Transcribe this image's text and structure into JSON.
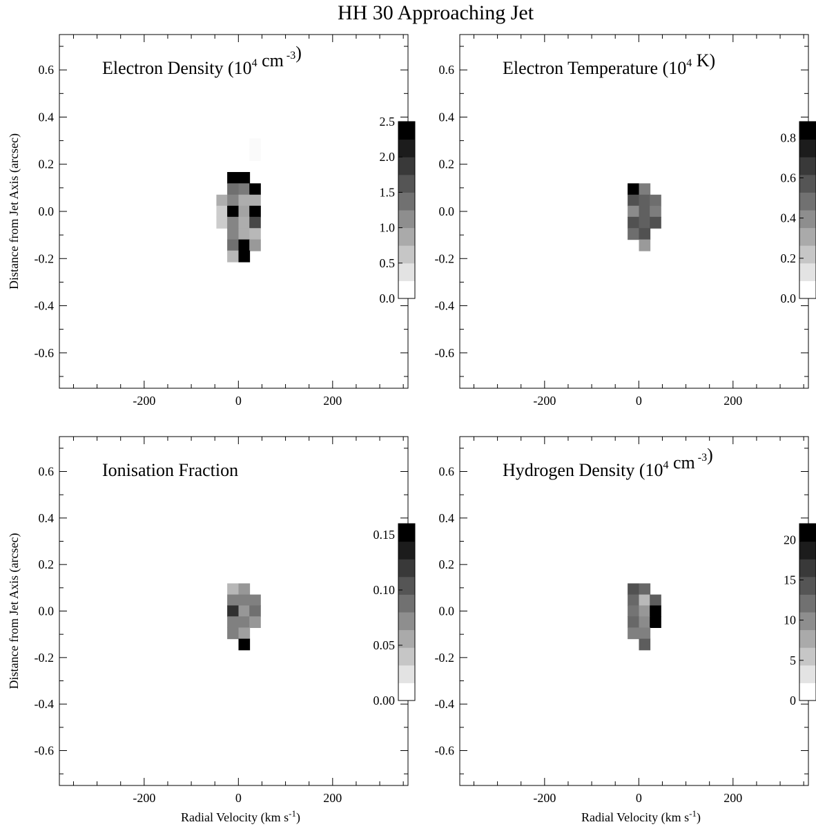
{
  "figure": {
    "title": "HH 30 Approaching Jet",
    "xlabel_prefix": "Radial Velocity (km s",
    "xlabel_sup": "-1",
    "xlabel_suffix": ")",
    "ylabel": "Distance from Jet Axis (arcsec)",
    "x_ticks": [
      "-200",
      "0",
      "200"
    ],
    "y_ticks": [
      "-0.6",
      "-0.4",
      "-0.2",
      "0.0",
      "0.2",
      "0.4",
      "0.6"
    ]
  },
  "chart_data": [
    {
      "type": "heatmap",
      "title_prefix": "Electron Density (10",
      "title_sup1": "4",
      "title_mid": " cm",
      "title_sup2": " -3",
      "title_suffix": ")",
      "xlim": [
        -380,
        360
      ],
      "ylim": [
        -0.75,
        0.75
      ],
      "cell_width": 23.5,
      "cell_height": 0.048,
      "colorbar": {
        "range": [
          0,
          2.5
        ],
        "ticks": [
          "0.0",
          "0.5",
          "1.0",
          "1.5",
          "2.0",
          "2.5"
        ],
        "tick_values": [
          0,
          0.5,
          1.0,
          1.5,
          2.0,
          2.5
        ]
      },
      "cells": [
        {
          "x": 35,
          "y": 0.285,
          "v": 0.05
        },
        {
          "x": 35,
          "y": 0.24,
          "v": 0.05
        },
        {
          "x": -12,
          "y": 0.143,
          "v": 2.5
        },
        {
          "x": 12,
          "y": 0.143,
          "v": 2.5
        },
        {
          "x": -12,
          "y": 0.095,
          "v": 1.4
        },
        {
          "x": 12,
          "y": 0.095,
          "v": 1.3
        },
        {
          "x": 35,
          "y": 0.095,
          "v": 2.5
        },
        {
          "x": -35,
          "y": 0.047,
          "v": 0.8
        },
        {
          "x": -12,
          "y": 0.047,
          "v": 1.2
        },
        {
          "x": 12,
          "y": 0.047,
          "v": 0.8
        },
        {
          "x": 35,
          "y": 0.047,
          "v": 0.8
        },
        {
          "x": -35,
          "y": 0.0,
          "v": 0.5
        },
        {
          "x": -12,
          "y": 0.0,
          "v": 2.5
        },
        {
          "x": 12,
          "y": 0.0,
          "v": 0.9
        },
        {
          "x": 35,
          "y": 0.0,
          "v": 2.5
        },
        {
          "x": -35,
          "y": -0.047,
          "v": 0.5
        },
        {
          "x": -12,
          "y": -0.047,
          "v": 1.2
        },
        {
          "x": 12,
          "y": -0.047,
          "v": 0.8
        },
        {
          "x": 35,
          "y": -0.047,
          "v": 1.8
        },
        {
          "x": -12,
          "y": -0.095,
          "v": 1.2
        },
        {
          "x": 12,
          "y": -0.095,
          "v": 0.8
        },
        {
          "x": 35,
          "y": -0.095,
          "v": 0.7
        },
        {
          "x": -12,
          "y": -0.143,
          "v": 1.4
        },
        {
          "x": 12,
          "y": -0.143,
          "v": 2.5
        },
        {
          "x": 35,
          "y": -0.143,
          "v": 1.0
        },
        {
          "x": -12,
          "y": -0.19,
          "v": 0.7
        },
        {
          "x": 12,
          "y": -0.19,
          "v": 2.5
        }
      ]
    },
    {
      "type": "heatmap",
      "title_prefix": "Electron Temperature (10",
      "title_sup1": "4",
      "title_mid": " K)",
      "title_sup2": "",
      "title_suffix": "",
      "xlim": [
        -380,
        360
      ],
      "ylim": [
        -0.75,
        0.75
      ],
      "cell_width": 23.5,
      "cell_height": 0.048,
      "colorbar": {
        "range": [
          0,
          0.88
        ],
        "ticks": [
          "0.0",
          "0.2",
          "0.4",
          "0.6",
          "0.8"
        ],
        "tick_values": [
          0,
          0.2,
          0.4,
          0.6,
          0.8
        ]
      },
      "cells": [
        {
          "x": -12,
          "y": 0.095,
          "v": 0.88
        },
        {
          "x": 12,
          "y": 0.095,
          "v": 0.45
        },
        {
          "x": -12,
          "y": 0.047,
          "v": 0.6
        },
        {
          "x": 12,
          "y": 0.047,
          "v": 0.55
        },
        {
          "x": 35,
          "y": 0.047,
          "v": 0.5
        },
        {
          "x": -12,
          "y": 0.0,
          "v": 0.4
        },
        {
          "x": 12,
          "y": 0.0,
          "v": 0.55
        },
        {
          "x": 35,
          "y": 0.0,
          "v": 0.45
        },
        {
          "x": -12,
          "y": -0.047,
          "v": 0.6
        },
        {
          "x": 12,
          "y": -0.047,
          "v": 0.55
        },
        {
          "x": 35,
          "y": -0.047,
          "v": 0.6
        },
        {
          "x": -12,
          "y": -0.095,
          "v": 0.5
        },
        {
          "x": 12,
          "y": -0.095,
          "v": 0.6
        },
        {
          "x": 12,
          "y": -0.143,
          "v": 0.35
        }
      ]
    },
    {
      "type": "heatmap",
      "title_prefix": "Ionisation Fraction",
      "title_sup1": "",
      "title_mid": "",
      "title_sup2": "",
      "title_suffix": "",
      "xlim": [
        -380,
        360
      ],
      "ylim": [
        -0.75,
        0.75
      ],
      "cell_width": 23.5,
      "cell_height": 0.048,
      "colorbar": {
        "range": [
          0,
          0.16
        ],
        "ticks": [
          "0.00",
          "0.05",
          "0.10",
          "0.15"
        ],
        "tick_values": [
          0,
          0.05,
          0.1,
          0.15
        ]
      },
      "cells": [
        {
          "x": -12,
          "y": 0.095,
          "v": 0.045
        },
        {
          "x": 12,
          "y": 0.095,
          "v": 0.065
        },
        {
          "x": -12,
          "y": 0.047,
          "v": 0.08
        },
        {
          "x": 12,
          "y": 0.047,
          "v": 0.08
        },
        {
          "x": 35,
          "y": 0.047,
          "v": 0.08
        },
        {
          "x": -12,
          "y": 0.0,
          "v": 0.13
        },
        {
          "x": 12,
          "y": 0.0,
          "v": 0.065
        },
        {
          "x": 35,
          "y": 0.0,
          "v": 0.09
        },
        {
          "x": -12,
          "y": -0.047,
          "v": 0.08
        },
        {
          "x": 12,
          "y": -0.047,
          "v": 0.08
        },
        {
          "x": 35,
          "y": -0.047,
          "v": 0.065
        },
        {
          "x": -12,
          "y": -0.095,
          "v": 0.08
        },
        {
          "x": 12,
          "y": -0.095,
          "v": 0.06
        },
        {
          "x": 12,
          "y": -0.143,
          "v": 0.16
        }
      ]
    },
    {
      "type": "heatmap",
      "title_prefix": "Hydrogen Density (10",
      "title_sup1": "4",
      "title_mid": " cm",
      "title_sup2": " -3",
      "title_suffix": ")",
      "xlim": [
        -380,
        360
      ],
      "ylim": [
        -0.75,
        0.75
      ],
      "cell_width": 23.5,
      "cell_height": 0.048,
      "colorbar": {
        "range": [
          0,
          22
        ],
        "ticks": [
          "0",
          "5",
          "10",
          "15",
          "20"
        ],
        "tick_values": [
          0,
          5,
          10,
          15,
          20
        ]
      },
      "cells": [
        {
          "x": -12,
          "y": 0.095,
          "v": 15
        },
        {
          "x": 12,
          "y": 0.095,
          "v": 13
        },
        {
          "x": -12,
          "y": 0.047,
          "v": 13
        },
        {
          "x": 12,
          "y": 0.047,
          "v": 6
        },
        {
          "x": 35,
          "y": 0.047,
          "v": 14
        },
        {
          "x": -12,
          "y": 0.0,
          "v": 12
        },
        {
          "x": 12,
          "y": 0.0,
          "v": 9
        },
        {
          "x": 35,
          "y": 0.0,
          "v": 22
        },
        {
          "x": -12,
          "y": -0.047,
          "v": 13
        },
        {
          "x": 12,
          "y": -0.047,
          "v": 10
        },
        {
          "x": 35,
          "y": -0.047,
          "v": 22
        },
        {
          "x": -12,
          "y": -0.095,
          "v": 11
        },
        {
          "x": 12,
          "y": -0.095,
          "v": 11
        },
        {
          "x": 12,
          "y": -0.143,
          "v": 14
        }
      ]
    }
  ]
}
